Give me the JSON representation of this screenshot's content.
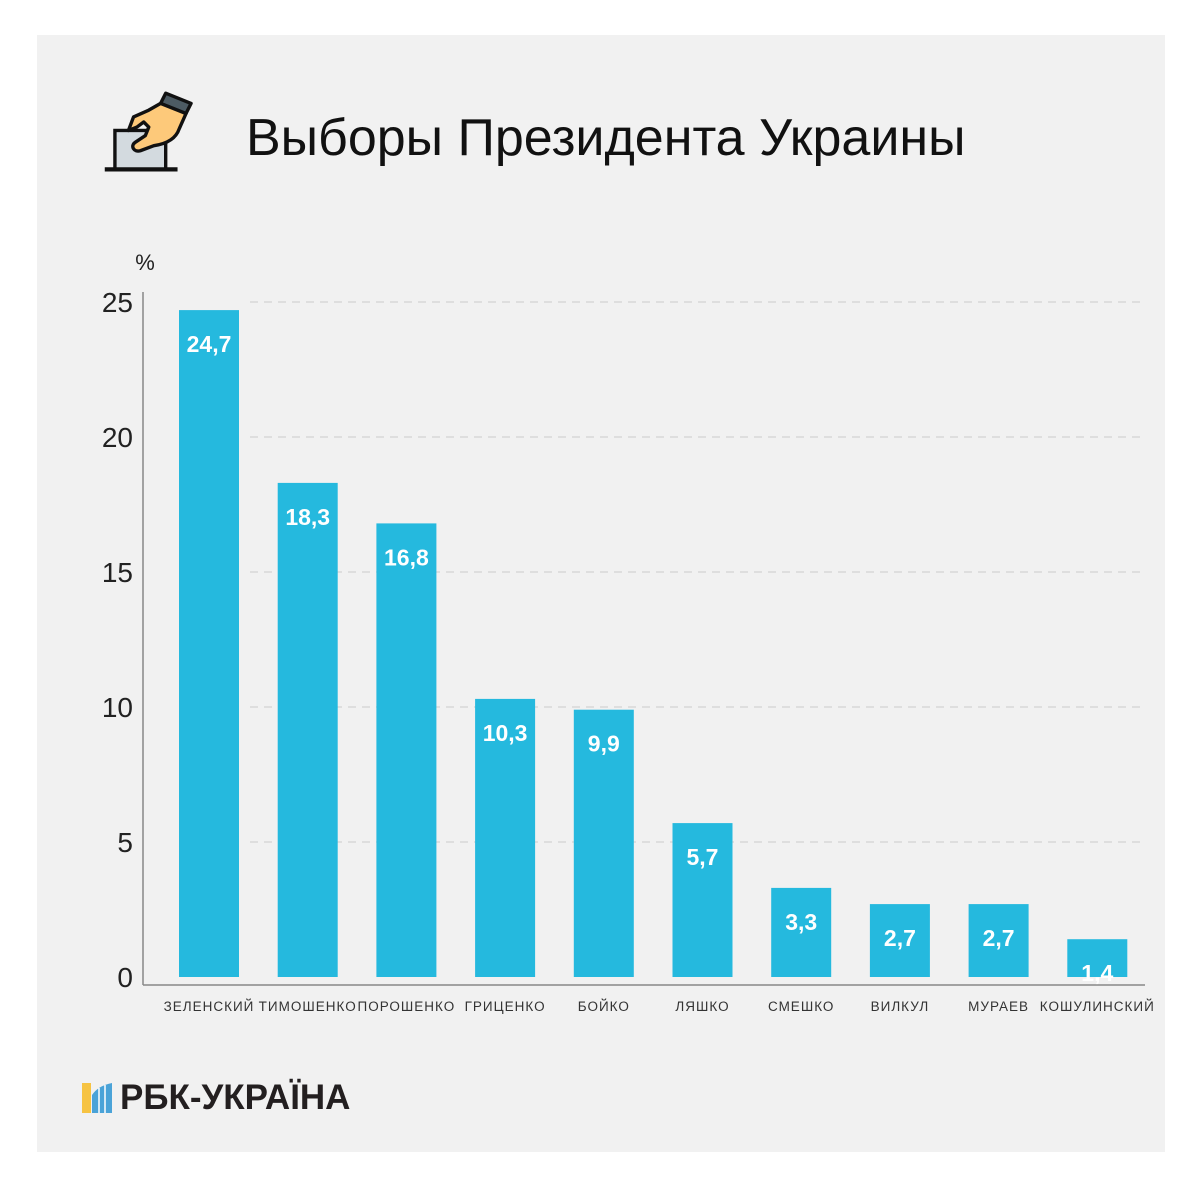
{
  "title": "Выборы Президента Украины",
  "logo_text": "РБК-УКРАЇНА",
  "colors": {
    "bar": "#25b9de",
    "background": "#f1f1f1",
    "grid": "#cccccc"
  },
  "icon": "ballot-box-hand-icon",
  "chart_data": {
    "type": "bar",
    "title": "Выборы Президента Украины",
    "ylabel": "%",
    "xlabel": "",
    "ylim": [
      0,
      25
    ],
    "yticks": [
      0,
      5,
      10,
      15,
      20,
      25
    ],
    "grid": true,
    "categories": [
      "ЗЕЛЕНСКИЙ",
      "ТИМОШЕНКО",
      "ПОРОШЕНКО",
      "ГРИЦЕНКО",
      "БОЙКО",
      "ЛЯШКО",
      "СМЕШКО",
      "ВИЛКУЛ",
      "МУРАЕВ",
      "КОШУЛИНСКИЙ"
    ],
    "values": [
      24.7,
      18.3,
      16.8,
      10.3,
      9.9,
      5.7,
      3.3,
      2.7,
      2.7,
      1.4
    ],
    "data_labels": [
      "24,7",
      "18,3",
      "16,8",
      "10,3",
      "9,9",
      "5,7",
      "3,3",
      "2,7",
      "2,7",
      "1,4"
    ]
  }
}
